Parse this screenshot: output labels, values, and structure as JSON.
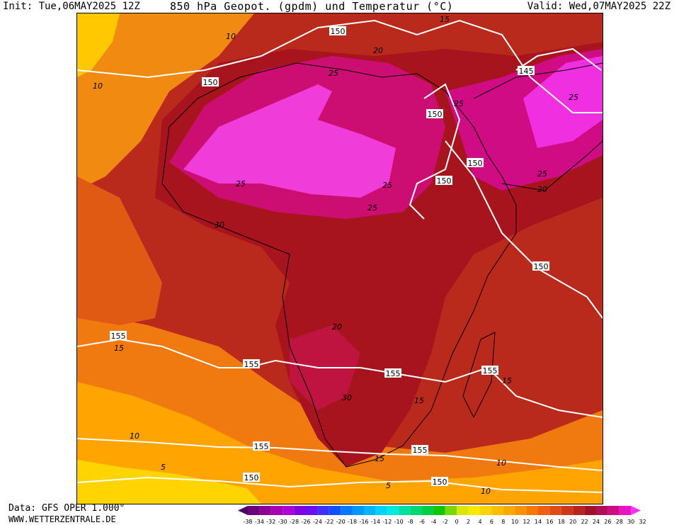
{
  "header": {
    "init": "Init: Tue,06MAY2025 12Z",
    "title": "850 hPa Geopot. (gpdm) und Temperatur (°C)",
    "valid": "Valid: Wed,07MAY2025 22Z"
  },
  "footer": {
    "data_source": "Data: GFS OPER 1.000°",
    "website": "WWW.WETTERZENTRALE.DE"
  },
  "map": {
    "region": "Africa",
    "geopotential_labels": [
      "150",
      "150",
      "150",
      "145",
      "150",
      "150",
      "150",
      "150",
      "155",
      "155",
      "155",
      "155",
      "155",
      "155",
      "150"
    ],
    "temperature_labels": [
      "10",
      "10",
      "15",
      "20",
      "25",
      "25",
      "25",
      "25",
      "25",
      "25",
      "25",
      "20",
      "30",
      "20",
      "30",
      "15",
      "15",
      "15",
      "10",
      "5",
      "5",
      "10",
      "15",
      "10"
    ]
  },
  "legend": {
    "values": [
      "-38",
      "-34",
      "-32",
      "-30",
      "-28",
      "-26",
      "-24",
      "-22",
      "-20",
      "-18",
      "-16",
      "-14",
      "-12",
      "-10",
      "-8",
      "-6",
      "-4",
      "-2",
      "0",
      "2",
      "4",
      "6",
      "8",
      "10",
      "12",
      "14",
      "16",
      "18",
      "20",
      "22",
      "24",
      "26",
      "28",
      "30",
      "32"
    ],
    "colors": [
      "#4a0060",
      "#6c007a",
      "#8c0096",
      "#a600b2",
      "#b000d8",
      "#8000e0",
      "#6a10f0",
      "#4030ff",
      "#1050ff",
      "#0078ff",
      "#0096ff",
      "#00b4ff",
      "#00d2ff",
      "#00e8e0",
      "#00e0a0",
      "#00d870",
      "#00d040",
      "#10c800",
      "#7ad800",
      "#dce600",
      "#ffe800",
      "#ffd400",
      "#ffbe00",
      "#ffa800",
      "#ff9200",
      "#f77800",
      "#ef6010",
      "#e04c14",
      "#cc3818",
      "#b8241c",
      "#a01226",
      "#b0105a",
      "#d00c84",
      "#ec14c0",
      "#ff30f4"
    ]
  }
}
